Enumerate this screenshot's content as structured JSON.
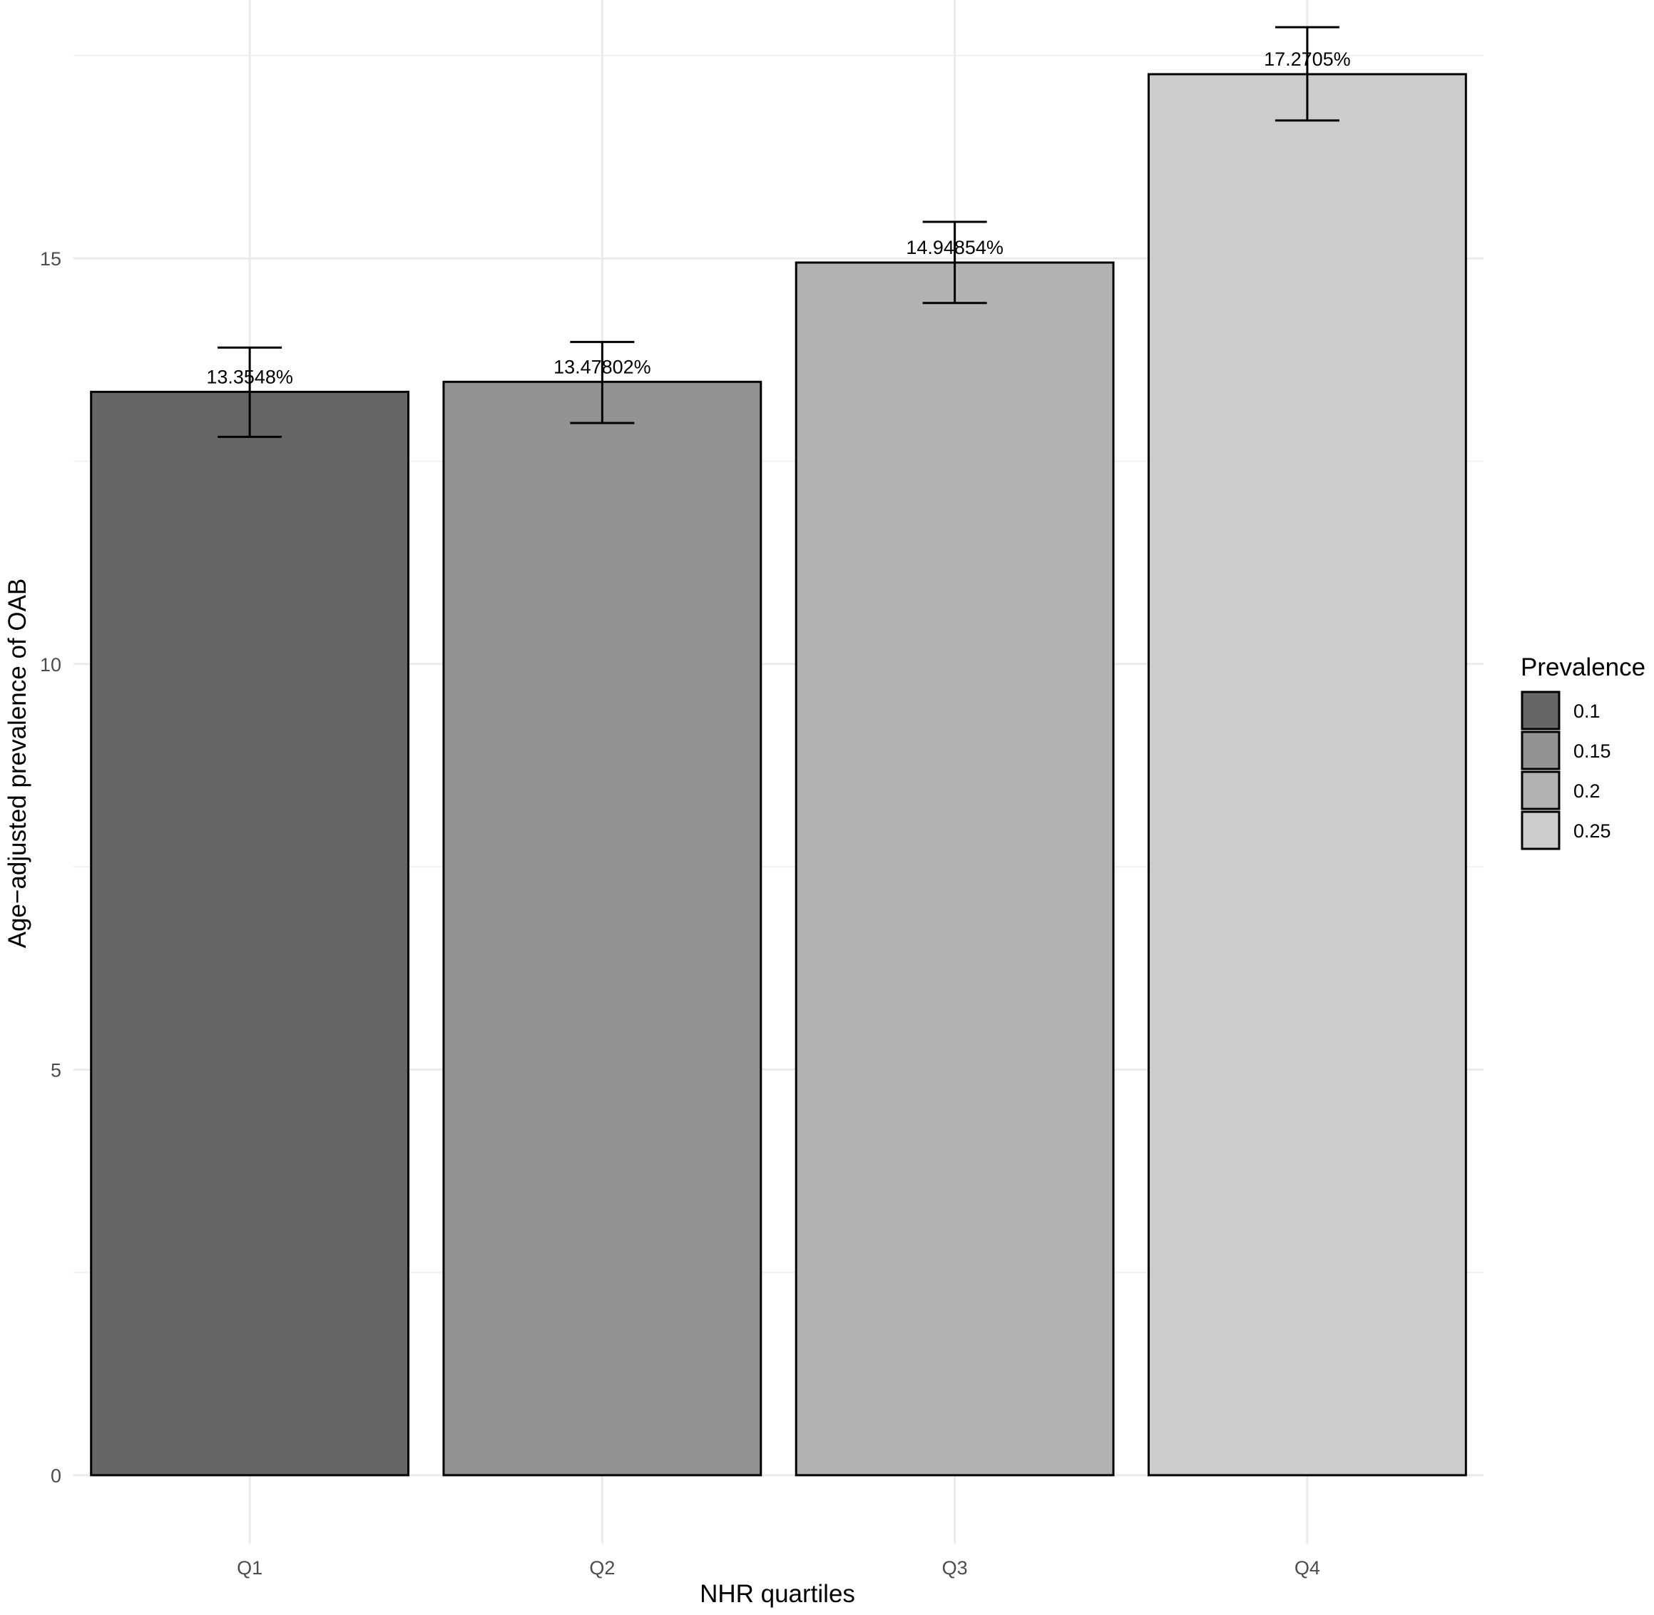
{
  "chart_data": {
    "type": "bar",
    "title": "",
    "xlabel": "NHR quartiles",
    "ylabel": "Age−adjusted prevalence of OAB",
    "categories": [
      "Q1",
      "Q2",
      "Q3",
      "Q4"
    ],
    "values": [
      13.3548,
      13.47802,
      14.94854,
      17.2705
    ],
    "error_bars": [
      {
        "low": 12.8,
        "high": 13.9
      },
      {
        "low": 12.97,
        "high": 13.97
      },
      {
        "low": 14.45,
        "high": 15.45
      },
      {
        "low": 16.7,
        "high": 17.85
      }
    ],
    "data_labels": [
      "13.3548%",
      "13.47802%",
      "14.94854%",
      "17.2705%"
    ],
    "ylim": [
      -0.85,
      18.3
    ],
    "y_ticks": [
      0,
      5,
      10,
      15
    ],
    "y_tick_labels": [
      "0",
      "5",
      "10",
      "15"
    ],
    "grid": true,
    "legend": {
      "title": "Prevalence",
      "position": "right",
      "items": [
        {
          "label": "0.1",
          "color": "#666666"
        },
        {
          "label": "0.15",
          "color": "#939393"
        },
        {
          "label": "0.2",
          "color": "#b2b2b2"
        },
        {
          "label": "0.25",
          "color": "#cccccc"
        }
      ]
    },
    "bar_colors": [
      "#666666",
      "#939393",
      "#b2b2b2",
      "#cccccc"
    ]
  }
}
